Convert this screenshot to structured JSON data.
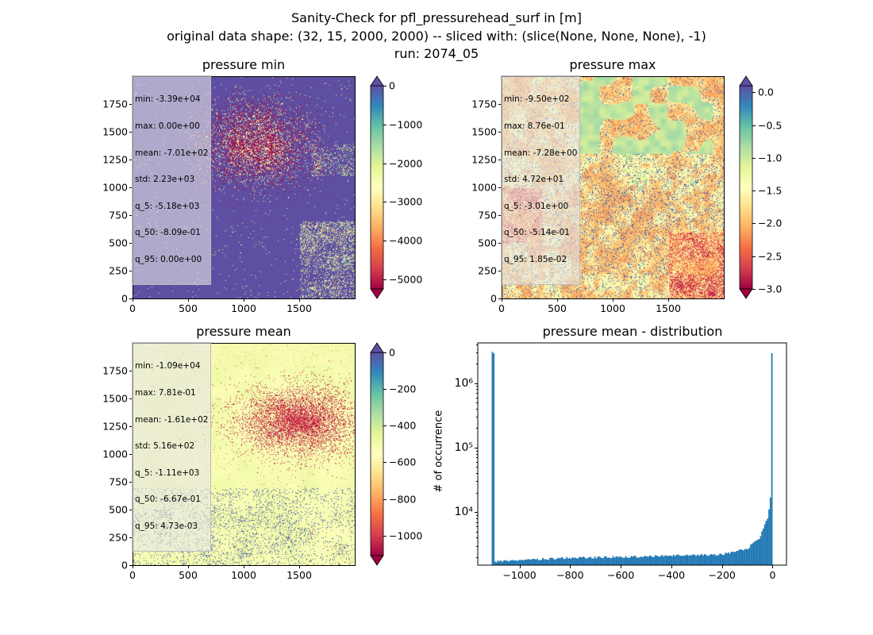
{
  "figure": {
    "title_line1": "Sanity-Check for pfl_pressurehead_surf in [m]",
    "title_line2": "original data shape: (32, 15, 2000, 2000) -- sliced with: (slice(None, None, None), -1)",
    "title_line3": "run: 2074_05"
  },
  "panels": {
    "min": {
      "title": "pressure min",
      "stats": [
        "min: -3.39e+04",
        "max: 0.00e+00",
        "mean: -7.01e+02",
        "std: 2.23e+03",
        "q_5: -5.18e+03",
        "q_50: -8.09e-01",
        "q_95: 0.00e+00"
      ],
      "xticks": [
        "0",
        "500",
        "1000",
        "1500"
      ],
      "yticks": [
        "0",
        "250",
        "500",
        "750",
        "1000",
        "1250",
        "1500",
        "1750"
      ],
      "cbar_ticks": [
        "0",
        "−1000",
        "−2000",
        "−3000",
        "−4000",
        "−5000"
      ]
    },
    "max": {
      "title": "pressure max",
      "stats": [
        "min: -9.50e+02",
        "max: 8.76e-01",
        "mean: -7.28e+00",
        "std: 4.72e+01",
        "q_5: -3.01e+00",
        "q_50: -5.14e-01",
        "q_95: 1.85e-02"
      ],
      "xticks": [
        "0",
        "500",
        "1000",
        "1500"
      ],
      "yticks": [
        "0",
        "250",
        "500",
        "750",
        "1000",
        "1250",
        "1500",
        "1750"
      ],
      "cbar_ticks": [
        "0.0",
        "−0.5",
        "−1.0",
        "−1.5",
        "−2.0",
        "−2.5",
        "−3.0"
      ]
    },
    "mean": {
      "title": "pressure mean",
      "stats": [
        "min: -1.09e+04",
        "max: 7.81e-01",
        "mean: -1.61e+02",
        "std: 5.16e+02",
        "q_5: -1.11e+03",
        "q_50: -6.67e-01",
        "q_95: 4.73e-03"
      ],
      "xticks": [
        "0",
        "500",
        "1000",
        "1500"
      ],
      "yticks": [
        "0",
        "250",
        "500",
        "750",
        "1000",
        "1250",
        "1500",
        "1750"
      ],
      "cbar_ticks": [
        "0",
        "−200",
        "−400",
        "−600",
        "−800",
        "−1000"
      ]
    },
    "hist": {
      "title": "pressure mean - distribution",
      "ylabel": "# of occurrence",
      "xticks": [
        "−1000",
        "−800",
        "−600",
        "−400",
        "−200",
        "0"
      ],
      "yticks": [
        "10⁴",
        "10⁵",
        "10⁶"
      ]
    }
  },
  "colors": {
    "spectral": [
      "#5e4fa2",
      "#3288bd",
      "#66c2a5",
      "#abdda4",
      "#e6f598",
      "#ffffbf",
      "#fee08b",
      "#fdae61",
      "#f46d43",
      "#d53e4f",
      "#9e0142"
    ],
    "hist_bar": "#1f77b4"
  },
  "chart_data": [
    {
      "type": "heatmap",
      "title": "pressure min",
      "xlim": [
        0,
        2000
      ],
      "ylim": [
        0,
        2000
      ],
      "xticks": [
        0,
        500,
        1000,
        1500
      ],
      "yticks": [
        0,
        250,
        500,
        750,
        1000,
        1250,
        1500,
        1750
      ],
      "colorbar": {
        "cmap": "Spectral",
        "vmin": -5250,
        "vmax": 0,
        "ticks": [
          0,
          -1000,
          -2000,
          -3000,
          -4000,
          -5000
        ],
        "extend": "both"
      },
      "stats": {
        "min": -33900,
        "max": 0,
        "mean": -701,
        "std": 2230,
        "q_5": -5180,
        "q_50": -0.809,
        "q_95": 0
      }
    },
    {
      "type": "heatmap",
      "title": "pressure max",
      "xlim": [
        0,
        2000
      ],
      "ylim": [
        0,
        2000
      ],
      "xticks": [
        0,
        500,
        1000,
        1500
      ],
      "yticks": [
        0,
        250,
        500,
        750,
        1000,
        1250,
        1500,
        1750
      ],
      "colorbar": {
        "cmap": "Spectral",
        "vmin": -3.0,
        "vmax": 0.1,
        "ticks": [
          0.0,
          -0.5,
          -1.0,
          -1.5,
          -2.0,
          -2.5,
          -3.0
        ],
        "extend": "both"
      },
      "stats": {
        "min": -950,
        "max": 0.876,
        "mean": -7.28,
        "std": 47.2,
        "q_5": -3.01,
        "q_50": -0.514,
        "q_95": 0.0185
      }
    },
    {
      "type": "heatmap",
      "title": "pressure mean",
      "xlim": [
        0,
        2000
      ],
      "ylim": [
        0,
        2000
      ],
      "xticks": [
        0,
        500,
        1000,
        1500
      ],
      "yticks": [
        0,
        250,
        500,
        750,
        1000,
        1250,
        1500,
        1750
      ],
      "colorbar": {
        "cmap": "Spectral",
        "vmin": -1110,
        "vmax": 0,
        "ticks": [
          0,
          -200,
          -400,
          -600,
          -800,
          -1000
        ],
        "extend": "both"
      },
      "stats": {
        "min": -10900,
        "max": 0.781,
        "mean": -161,
        "std": 516,
        "q_5": -1110,
        "q_50": -0.667,
        "q_95": 0.00473
      }
    },
    {
      "type": "bar",
      "title": "pressure mean - distribution",
      "ylabel": "# of occurrence",
      "xlim": [
        -1165,
        55
      ],
      "ylim": [
        1500,
        4200000
      ],
      "yscale": "log",
      "xticks": [
        -1000,
        -800,
        -600,
        -400,
        -200,
        0
      ],
      "bin_range": [
        -1110,
        0
      ],
      "bins": 200,
      "counts_by_region": [
        {
          "x": -1100,
          "count": 1700
        },
        {
          "x": -1000,
          "count": 1800
        },
        {
          "x": -800,
          "count": 1950
        },
        {
          "x": -600,
          "count": 2000
        },
        {
          "x": -400,
          "count": 2100
        },
        {
          "x": -200,
          "count": 2200
        },
        {
          "x": -100,
          "count": 2700
        },
        {
          "x": -50,
          "count": 4000
        },
        {
          "x": -20,
          "count": 8000
        },
        {
          "x": -10,
          "count": 13000
        },
        {
          "x": -5,
          "count": 25000
        },
        {
          "x": 0,
          "count": 3000000
        }
      ]
    }
  ]
}
